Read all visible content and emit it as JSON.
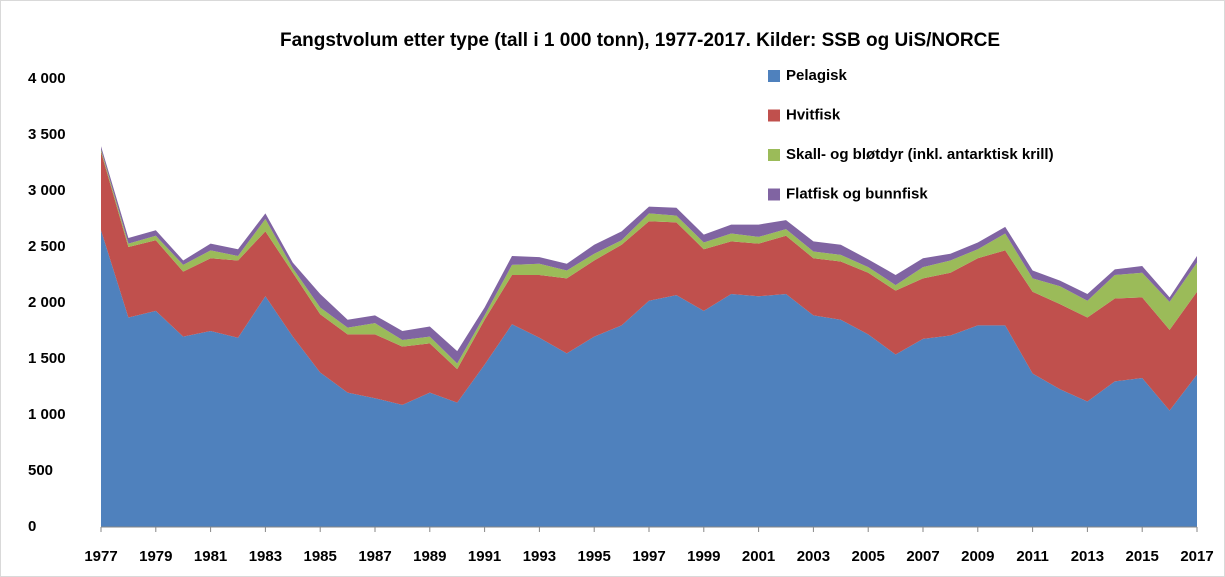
{
  "chart_data": {
    "type": "area",
    "stacked": true,
    "title": "Fangstvolum etter type (tall i 1 000 tonn), 1977-2017. Kilder: SSB og UiS/NORCE",
    "x": [
      1977,
      1978,
      1979,
      1980,
      1981,
      1982,
      1983,
      1984,
      1985,
      1986,
      1987,
      1988,
      1989,
      1990,
      1991,
      1992,
      1993,
      1994,
      1995,
      1996,
      1997,
      1998,
      1999,
      2000,
      2001,
      2002,
      2003,
      2004,
      2005,
      2006,
      2007,
      2008,
      2009,
      2010,
      2011,
      2012,
      2013,
      2014,
      2015,
      2016,
      2017
    ],
    "xlim": [
      1977,
      2017
    ],
    "xticks": [
      1977,
      1979,
      1981,
      1983,
      1985,
      1987,
      1989,
      1991,
      1993,
      1995,
      1997,
      1999,
      2001,
      2003,
      2005,
      2007,
      2009,
      2011,
      2013,
      2015,
      2017
    ],
    "ylim": [
      0,
      4000
    ],
    "yticks": [
      0,
      500,
      {
        "value": 1000,
        "label": "1 000"
      },
      {
        "value": 1500,
        "label": "1 500"
      },
      {
        "value": 2000,
        "label": "2 000"
      },
      {
        "value": 2500,
        "label": "2 500"
      },
      {
        "value": 3000,
        "label": "3 000"
      },
      {
        "value": 3500,
        "label": "3 500"
      },
      {
        "value": 4000,
        "label": "4 000"
      }
    ],
    "grid": false,
    "legend": "top-right",
    "series": [
      {
        "name": "Pelagisk",
        "color": "#4f81bd",
        "values": [
          2650,
          1870,
          1930,
          1700,
          1750,
          1690,
          2060,
          1700,
          1380,
          1200,
          1150,
          1090,
          1200,
          1110,
          1450,
          1810,
          1690,
          1550,
          1700,
          1800,
          2020,
          2070,
          1930,
          2080,
          2060,
          2080,
          1890,
          1850,
          1720,
          1540,
          1680,
          1710,
          1800,
          1800,
          1370,
          1230,
          1120,
          1300,
          1330,
          1040,
          1360
        ]
      },
      {
        "name": "Hvitfisk",
        "color": "#c0504d",
        "values": [
          700,
          630,
          630,
          580,
          650,
          690,
          580,
          570,
          520,
          520,
          570,
          520,
          440,
          300,
          400,
          440,
          560,
          670,
          680,
          720,
          710,
          650,
          550,
          470,
          470,
          520,
          510,
          520,
          550,
          570,
          540,
          560,
          600,
          670,
          730,
          760,
          750,
          740,
          720,
          720,
          740
        ]
      },
      {
        "name": "Skall- og bløtdyr (inkl. antarktisk krill)",
        "color": "#9bbb59",
        "values": [
          20,
          30,
          40,
          60,
          70,
          40,
          110,
          40,
          60,
          60,
          100,
          60,
          60,
          50,
          40,
          90,
          100,
          70,
          60,
          40,
          70,
          60,
          60,
          70,
          60,
          60,
          60,
          60,
          50,
          50,
          100,
          110,
          80,
          150,
          120,
          160,
          150,
          210,
          220,
          250,
          260
        ]
      },
      {
        "name": "Flatfisk og bunnfisk",
        "color": "#8064a2",
        "values": [
          30,
          50,
          50,
          40,
          60,
          60,
          50,
          50,
          120,
          70,
          70,
          80,
          90,
          110,
          70,
          80,
          60,
          60,
          80,
          80,
          60,
          70,
          70,
          80,
          110,
          80,
          90,
          90,
          70,
          90,
          80,
          60,
          60,
          60,
          70,
          50,
          60,
          50,
          60,
          40,
          60
        ]
      }
    ]
  }
}
